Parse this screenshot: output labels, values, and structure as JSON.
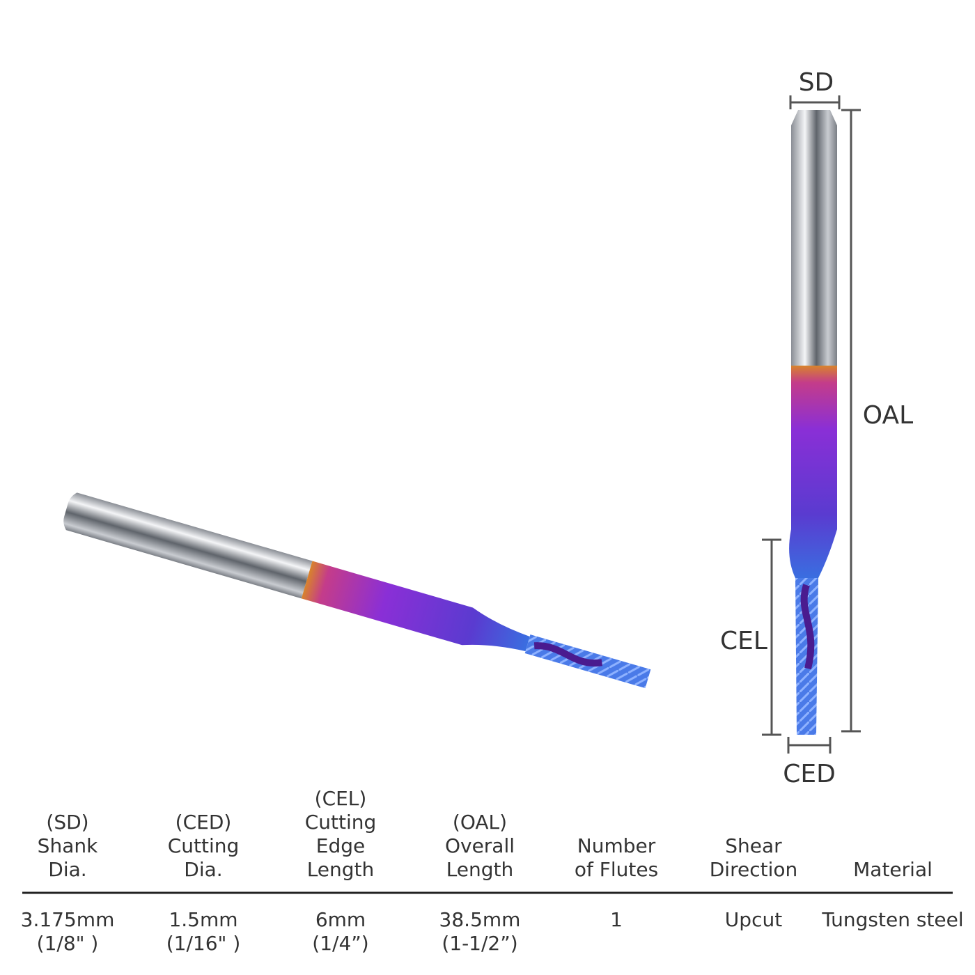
{
  "labels": {
    "sd": "SD",
    "oal": "OAL",
    "cel": "CEL",
    "ced": "CED"
  },
  "table": {
    "headers": [
      [
        "(SD)",
        "Shank",
        "Dia."
      ],
      [
        "(CED)",
        "Cutting",
        "Dia."
      ],
      [
        "(CEL)",
        "Cutting",
        "Edge",
        "Length"
      ],
      [
        "(OAL)",
        "Overall",
        "Length"
      ],
      [
        "Number",
        "of  Flutes"
      ],
      [
        "Shear",
        "Direction"
      ],
      [
        "Material"
      ]
    ],
    "rows": [
      [
        [
          "3.175mm",
          "(1/8\" )"
        ],
        [
          "1.5mm",
          "(1/16\" )"
        ],
        [
          "6mm",
          "(1/4”)"
        ],
        [
          "38.5mm",
          "(1-1/2”)"
        ],
        [
          "1"
        ],
        [
          "Upcut"
        ],
        [
          "Tungsten steel"
        ]
      ]
    ]
  }
}
